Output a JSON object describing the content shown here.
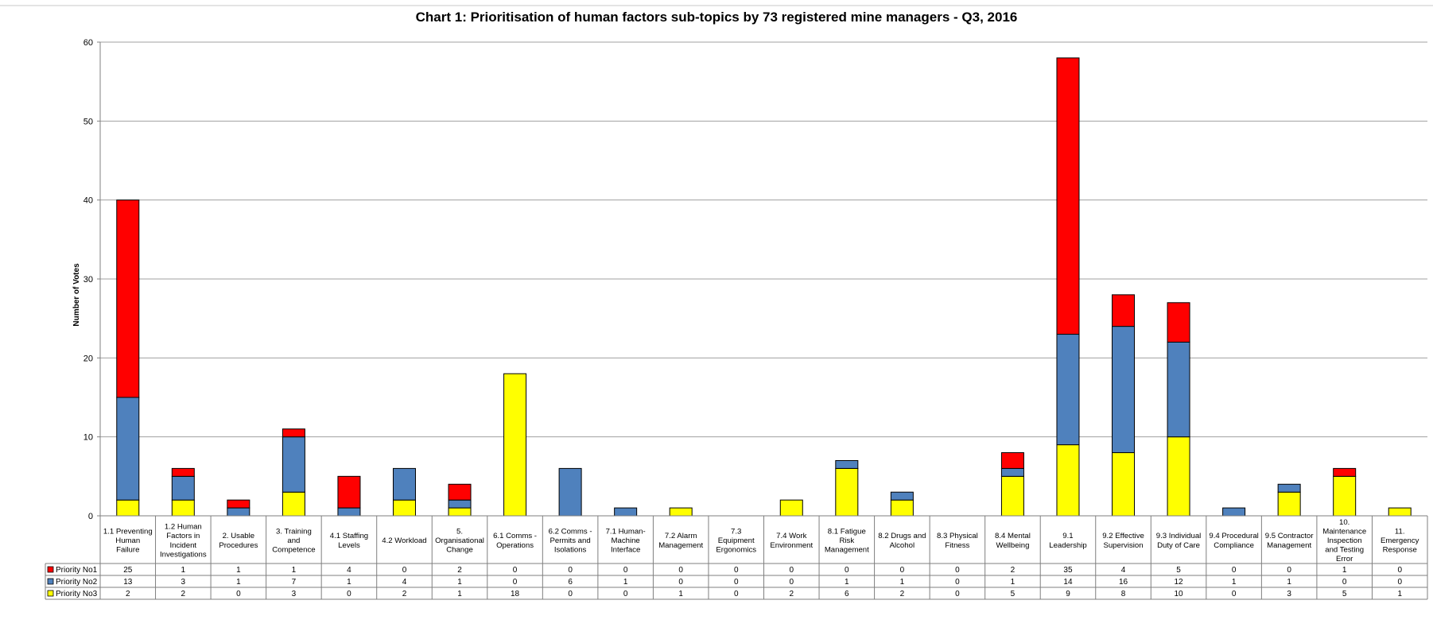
{
  "chart_data": {
    "type": "bar",
    "stacked": true,
    "title": "Chart 1: Prioritisation of human factors sub-topics by 73 registered mine managers - Q3, 2016",
    "xlabel": "",
    "ylabel": "Number of Votes",
    "ylim": [
      0,
      60
    ],
    "yticks": [
      0,
      10,
      20,
      30,
      40,
      50,
      60
    ],
    "grid": true,
    "legend_placement": "data-table-left",
    "categories": [
      "1.1 Preventing Human Failure",
      "1.2 Human Factors in Incident Investigations",
      "2. Usable Procedures",
      "3. Training and Competence",
      "4.1 Staffing Levels",
      "4.2 Workload",
      "5. Organisational Change",
      "6.1 Comms - Operations",
      "6.2 Comms - Permits and Isolations",
      "7.1 Human-Machine Interface",
      "7.2 Alarm Management",
      "7.3 Equipment Ergonomics",
      "7.4 Work Environment",
      "8.1 Fatigue Risk Management",
      "8.2 Drugs and Alcohol",
      "8.3 Physical Fitness",
      "8.4 Mental Wellbeing",
      "9.1 Leadership",
      "9.2 Effective Supervision",
      "9.3 Individual Duty of Care",
      "9.4 Procedural Compliance",
      "9.5 Contractor Management",
      "10. Maintenance Inspection and Testing Error",
      "11. Emergency Response"
    ],
    "category_lines": [
      [
        "1.1 Preventing",
        "Human",
        "Failure"
      ],
      [
        "1.2 Human",
        "Factors in",
        "Incident",
        "Investigations"
      ],
      [
        "2. Usable",
        "Procedures"
      ],
      [
        "3. Training",
        "and",
        "Competence"
      ],
      [
        "4.1 Staffing",
        "Levels"
      ],
      [
        "4.2 Workload"
      ],
      [
        "5.",
        "Organisational",
        "Change"
      ],
      [
        "6.1 Comms -",
        "Operations"
      ],
      [
        "6.2 Comms -",
        "Permits and",
        "Isolations"
      ],
      [
        "7.1 Human-",
        "Machine",
        "Interface"
      ],
      [
        "7.2 Alarm",
        "Management"
      ],
      [
        "7.3",
        "Equipment",
        "Ergonomics"
      ],
      [
        "7.4 Work",
        "Environment"
      ],
      [
        "8.1 Fatigue",
        "Risk",
        "Management"
      ],
      [
        "8.2 Drugs and",
        "Alcohol"
      ],
      [
        "8.3 Physical",
        "Fitness"
      ],
      [
        "8.4 Mental",
        "Wellbeing"
      ],
      [
        "9.1",
        "Leadership"
      ],
      [
        "9.2 Effective",
        "Supervision"
      ],
      [
        "9.3 Individual",
        "Duty of Care"
      ],
      [
        "9.4 Procedural",
        "Compliance"
      ],
      [
        "9.5 Contractor",
        "Management"
      ],
      [
        "10.",
        "Maintenance",
        "Inspection",
        "and Testing",
        "Error"
      ],
      [
        "11.",
        "Emergency",
        "Response"
      ]
    ],
    "series": [
      {
        "name": "Priority No1",
        "color": "#ff0000",
        "values": [
          25,
          1,
          1,
          1,
          4,
          0,
          2,
          0,
          0,
          0,
          0,
          0,
          0,
          0,
          0,
          0,
          2,
          35,
          4,
          5,
          0,
          0,
          1,
          0
        ]
      },
      {
        "name": "Priority No2",
        "color": "#4f81bd",
        "values": [
          13,
          3,
          1,
          7,
          1,
          4,
          1,
          0,
          6,
          1,
          0,
          0,
          0,
          1,
          1,
          0,
          1,
          14,
          16,
          12,
          1,
          1,
          0,
          0
        ]
      },
      {
        "name": "Priority No3",
        "color": "#ffff00",
        "values": [
          2,
          2,
          0,
          3,
          0,
          2,
          1,
          18,
          0,
          0,
          1,
          0,
          2,
          6,
          2,
          0,
          5,
          9,
          8,
          10,
          0,
          3,
          5,
          1
        ]
      }
    ],
    "stack_order_bottom_to_top": [
      "Priority No3",
      "Priority No2",
      "Priority No1"
    ],
    "table_row_order": [
      "Priority No1",
      "Priority No2",
      "Priority No3"
    ]
  }
}
